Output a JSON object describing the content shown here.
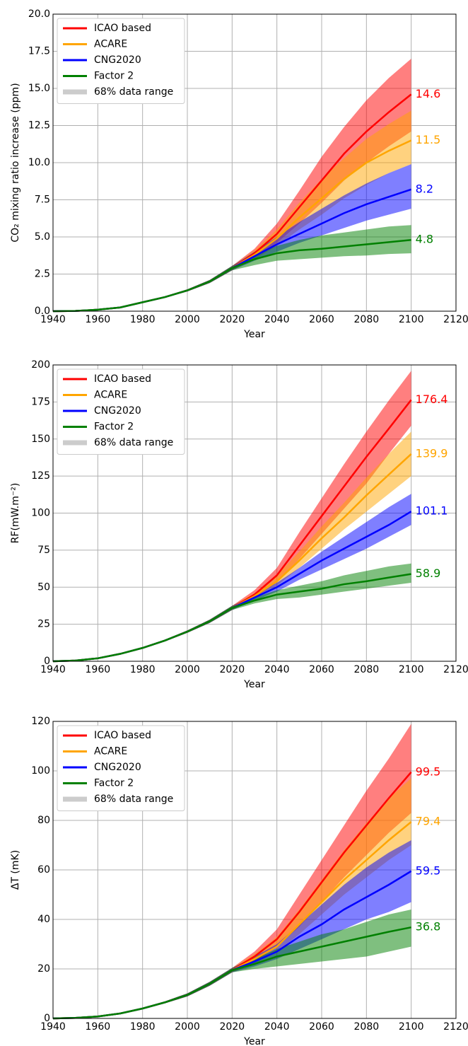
{
  "chart_data": [
    {
      "type": "line",
      "xlabel": "Year",
      "ylabel": "CO₂ mixing ratio increase (ppm)",
      "band_label": "68% data range",
      "legend": "upper left",
      "grid": true,
      "x": [
        1940,
        1950,
        1960,
        1970,
        1980,
        1990,
        2000,
        2010,
        2020,
        2030,
        2040,
        2050,
        2060,
        2070,
        2080,
        2090,
        2100
      ],
      "xlim": [
        1940,
        2120
      ],
      "xticks": [
        1940,
        1960,
        1980,
        2000,
        2020,
        2040,
        2060,
        2080,
        2100,
        2120
      ],
      "ylim": [
        0,
        20
      ],
      "yticks": [
        {
          "value": 0,
          "label": "0.0"
        },
        2.5,
        {
          "value": 5,
          "label": "5.0"
        },
        7.5,
        {
          "value": 10,
          "label": "10.0"
        },
        12.5,
        {
          "value": 15,
          "label": "15.0"
        },
        17.5,
        {
          "value": 20,
          "label": "20.0"
        }
      ],
      "series": [
        {
          "name": "ICAO based",
          "color": "#ff0000",
          "values": [
            0,
            0.02,
            0.1,
            0.25,
            0.6,
            0.95,
            1.4,
            2.0,
            2.9,
            3.9,
            5.2,
            7.0,
            8.8,
            10.6,
            12.1,
            13.4,
            14.6
          ],
          "lower": [
            0,
            0.02,
            0.09,
            0.23,
            0.57,
            0.9,
            1.33,
            1.9,
            2.75,
            3.6,
            4.6,
            5.9,
            7.3,
            8.8,
            10.0,
            11.1,
            12.1
          ],
          "upper": [
            0,
            0.02,
            0.11,
            0.27,
            0.63,
            1.0,
            1.47,
            2.1,
            3.05,
            4.2,
            5.9,
            8.1,
            10.4,
            12.4,
            14.2,
            15.7,
            17.0
          ]
        },
        {
          "name": "ACARE",
          "color": "#ffa500",
          "values": [
            0,
            0.02,
            0.1,
            0.25,
            0.6,
            0.95,
            1.4,
            2.0,
            2.9,
            3.8,
            4.9,
            6.3,
            7.6,
            8.9,
            10.0,
            10.8,
            11.5
          ],
          "lower": [
            0,
            0.02,
            0.09,
            0.23,
            0.57,
            0.9,
            1.33,
            1.9,
            2.75,
            3.5,
            4.4,
            5.5,
            6.5,
            7.6,
            8.5,
            9.3,
            9.9
          ],
          "upper": [
            0,
            0.02,
            0.11,
            0.27,
            0.63,
            1.0,
            1.47,
            2.1,
            3.05,
            4.1,
            5.5,
            7.3,
            8.9,
            10.3,
            11.6,
            12.6,
            13.5
          ]
        },
        {
          "name": "CNG2020",
          "color": "#0000ff",
          "values": [
            0,
            0.02,
            0.1,
            0.25,
            0.6,
            0.95,
            1.4,
            2.0,
            2.9,
            3.7,
            4.5,
            5.2,
            5.9,
            6.6,
            7.2,
            7.7,
            8.2
          ],
          "lower": [
            0,
            0.02,
            0.09,
            0.23,
            0.57,
            0.9,
            1.33,
            1.9,
            2.75,
            3.4,
            4.0,
            4.6,
            5.1,
            5.6,
            6.1,
            6.5,
            6.9
          ],
          "upper": [
            0,
            0.02,
            0.11,
            0.27,
            0.63,
            1.0,
            1.47,
            2.1,
            3.05,
            4.0,
            5.0,
            6.0,
            6.9,
            7.8,
            8.6,
            9.3,
            9.9
          ]
        },
        {
          "name": "Factor 2",
          "color": "#008000",
          "values": [
            0,
            0.02,
            0.1,
            0.25,
            0.6,
            0.95,
            1.4,
            2.0,
            2.9,
            3.5,
            3.9,
            4.1,
            4.2,
            4.35,
            4.5,
            4.65,
            4.8
          ],
          "lower": [
            0,
            0.02,
            0.09,
            0.23,
            0.57,
            0.9,
            1.33,
            1.9,
            2.75,
            3.1,
            3.4,
            3.5,
            3.6,
            3.7,
            3.75,
            3.85,
            3.9
          ],
          "upper": [
            0,
            0.02,
            0.11,
            0.27,
            0.63,
            1.0,
            1.47,
            2.1,
            3.05,
            3.8,
            4.4,
            4.8,
            5.1,
            5.3,
            5.5,
            5.7,
            5.8
          ]
        }
      ]
    },
    {
      "type": "line",
      "xlabel": "Year",
      "ylabel": "RF(mW.m⁻²)",
      "band_label": "68% data range",
      "legend": "upper left",
      "grid": true,
      "x": [
        1940,
        1950,
        1960,
        1970,
        1980,
        1990,
        2000,
        2010,
        2020,
        2030,
        2040,
        2050,
        2060,
        2070,
        2080,
        2090,
        2100
      ],
      "xlim": [
        1940,
        2120
      ],
      "xticks": [
        1940,
        1960,
        1980,
        2000,
        2020,
        2040,
        2060,
        2080,
        2100,
        2120
      ],
      "ylim": [
        0,
        200
      ],
      "yticks": [
        0,
        25,
        50,
        75,
        100,
        125,
        150,
        175,
        200
      ],
      "series": [
        {
          "name": "ICAO based",
          "color": "#ff0000",
          "values": [
            0,
            0.5,
            2,
            5,
            9,
            14,
            20,
            27,
            36,
            45,
            58,
            78,
            98,
            118,
            138,
            157,
            176.4
          ],
          "lower": [
            0,
            0.5,
            1.9,
            4.8,
            8.6,
            13.4,
            19.2,
            25.9,
            34.6,
            43,
            53,
            69,
            86,
            103,
            120,
            140,
            159
          ],
          "upper": [
            0,
            0.5,
            2.1,
            5.2,
            9.4,
            14.6,
            20.8,
            28.1,
            37.4,
            48,
            63,
            87,
            110,
            133,
            155,
            176,
            196
          ]
        },
        {
          "name": "ACARE",
          "color": "#ffa500",
          "values": [
            0,
            0.5,
            2,
            5,
            9,
            14,
            20,
            27,
            36,
            44,
            54,
            68,
            83,
            97,
            112,
            126,
            139.9
          ],
          "lower": [
            0,
            0.5,
            1.9,
            4.8,
            8.6,
            13.4,
            19.2,
            25.9,
            34.6,
            42,
            51,
            63,
            76,
            89,
            101,
            113,
            125
          ],
          "upper": [
            0,
            0.5,
            2.1,
            5.2,
            9.4,
            14.6,
            20.8,
            28.1,
            37.4,
            46,
            58,
            74,
            91,
            107,
            124,
            140,
            155
          ]
        },
        {
          "name": "CNG2020",
          "color": "#0000ff",
          "values": [
            0,
            0.5,
            2,
            5,
            9,
            14,
            20,
            27,
            36,
            43,
            50,
            59,
            68,
            76,
            84,
            92,
            101.1
          ],
          "lower": [
            0,
            0.5,
            1.9,
            4.8,
            8.6,
            13.4,
            19.2,
            25.9,
            34.6,
            41,
            47,
            55,
            62,
            69,
            76,
            84,
            92
          ],
          "upper": [
            0,
            0.5,
            2.1,
            5.2,
            9.4,
            14.6,
            20.8,
            28.1,
            37.4,
            45,
            53,
            63,
            74,
            84,
            94,
            104,
            113
          ]
        },
        {
          "name": "Factor 2",
          "color": "#008000",
          "values": [
            0,
            0.5,
            2,
            5,
            9,
            14,
            20,
            27,
            36,
            41,
            45,
            47,
            49,
            52,
            54,
            56.5,
            58.9
          ],
          "lower": [
            0,
            0.5,
            1.9,
            4.8,
            8.6,
            13.4,
            19.2,
            25.9,
            34.6,
            39,
            42,
            43,
            45,
            47,
            49,
            51,
            53
          ],
          "upper": [
            0,
            0.5,
            2.1,
            5.2,
            9.4,
            14.6,
            20.8,
            28.1,
            37.4,
            43,
            48,
            51,
            54,
            58,
            61,
            64,
            66
          ]
        }
      ]
    },
    {
      "type": "line",
      "xlabel": "Year",
      "ylabel": "ΔT (mK)",
      "band_label": "68% data range",
      "legend": "upper left",
      "grid": true,
      "x": [
        1940,
        1950,
        1960,
        1970,
        1980,
        1990,
        2000,
        2010,
        2020,
        2030,
        2040,
        2050,
        2060,
        2070,
        2080,
        2090,
        2100
      ],
      "xlim": [
        1940,
        2120
      ],
      "xticks": [
        1940,
        1960,
        1980,
        2000,
        2020,
        2040,
        2060,
        2080,
        2100,
        2120
      ],
      "ylim": [
        0,
        120
      ],
      "yticks": [
        0,
        20,
        40,
        60,
        80,
        100,
        120
      ],
      "series": [
        {
          "name": "ICAO based",
          "color": "#ff0000",
          "values": [
            0,
            0.2,
            0.8,
            2,
            4,
            6.5,
            9.5,
            14,
            19.5,
            25,
            32,
            43,
            55,
            67,
            78,
            89,
            99.5
          ],
          "lower": [
            0,
            0.2,
            0.8,
            1.9,
            3.8,
            6.1,
            8.9,
            13.2,
            18.6,
            23,
            29,
            37,
            47,
            57,
            66,
            75,
            83
          ],
          "upper": [
            0,
            0.2,
            0.8,
            2.1,
            4.2,
            6.9,
            10.1,
            14.8,
            20.4,
            27,
            36,
            50,
            64,
            78,
            92,
            105,
            119
          ]
        },
        {
          "name": "ACARE",
          "color": "#ffa500",
          "values": [
            0,
            0.2,
            0.8,
            2,
            4,
            6.5,
            9.5,
            14,
            19.5,
            24,
            29,
            38,
            47,
            56,
            64,
            72,
            79.4
          ],
          "lower": [
            0,
            0.2,
            0.8,
            1.9,
            3.8,
            6.1,
            8.9,
            13.2,
            18.6,
            22,
            27,
            34,
            42,
            50,
            57,
            64,
            70
          ],
          "upper": [
            0,
            0.2,
            0.8,
            2.1,
            4.2,
            6.9,
            10.1,
            14.8,
            20.4,
            26,
            33,
            44,
            56,
            68,
            79,
            89,
            97
          ]
        },
        {
          "name": "CNG2020",
          "color": "#0000ff",
          "values": [
            0,
            0.2,
            0.8,
            2,
            4,
            6.5,
            9.5,
            14,
            19.5,
            23,
            27,
            33,
            38,
            44,
            49,
            54,
            59.5
          ],
          "lower": [
            0,
            0.2,
            0.8,
            1.9,
            3.8,
            6.1,
            8.9,
            13.2,
            18.6,
            21,
            24,
            28,
            32,
            36,
            40,
            43,
            47
          ],
          "upper": [
            0,
            0.2,
            0.8,
            2.1,
            4.2,
            6.9,
            10.1,
            14.8,
            20.4,
            25,
            30,
            38,
            46,
            54,
            61,
            67,
            72
          ]
        },
        {
          "name": "Factor 2",
          "color": "#008000",
          "values": [
            0,
            0.2,
            0.8,
            2,
            4,
            6.5,
            9.5,
            14,
            19.5,
            22,
            25,
            27,
            29,
            31,
            33,
            35,
            36.8
          ],
          "lower": [
            0,
            0.2,
            0.8,
            1.9,
            3.8,
            6.1,
            8.9,
            13.2,
            18.6,
            20,
            21,
            22,
            23,
            24,
            25,
            27,
            29
          ],
          "upper": [
            0,
            0.2,
            0.8,
            2.1,
            4.2,
            6.9,
            10.1,
            14.8,
            20.4,
            24,
            28,
            31,
            34,
            36,
            39,
            42,
            44
          ]
        }
      ]
    }
  ]
}
